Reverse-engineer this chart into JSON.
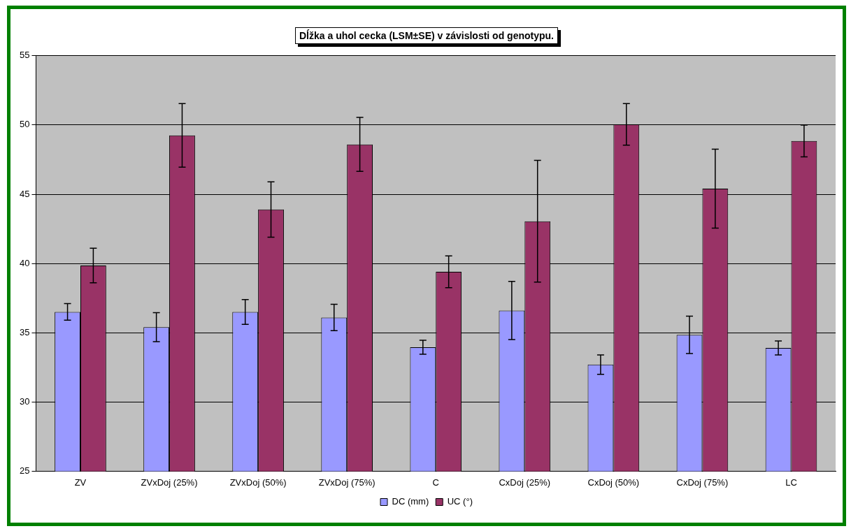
{
  "chart_data": {
    "type": "bar",
    "title": "Dĺžka a uhol cecka (LSM±SE) v závislosti od genotypu.",
    "categories": [
      "ZV",
      "ZVxDoj (25%)",
      "ZVxDoj (50%)",
      "ZVxDoj (75%)",
      "C",
      "CxDoj (25%)",
      "CxDoj (50%)",
      "CxDoj (75%)",
      "LC"
    ],
    "series": [
      {
        "name": "DC (mm)",
        "color": "#9999ff",
        "values": [
          36.5,
          35.4,
          36.5,
          36.1,
          33.95,
          36.6,
          32.7,
          34.85,
          33.9
        ],
        "errors": [
          0.6,
          1.05,
          0.9,
          0.95,
          0.5,
          2.1,
          0.7,
          1.35,
          0.5
        ]
      },
      {
        "name": "UC (°)",
        "color": "#993366",
        "values": [
          39.85,
          49.25,
          43.9,
          48.6,
          39.4,
          43.05,
          50.05,
          45.4,
          48.85
        ],
        "errors": [
          1.25,
          2.3,
          2.0,
          1.95,
          1.15,
          4.4,
          1.5,
          2.85,
          1.15
        ]
      }
    ],
    "ylim": [
      25,
      55
    ],
    "yticks": [
      25,
      30,
      35,
      40,
      45,
      50,
      55
    ],
    "grid": "y",
    "legend": "bottom"
  }
}
